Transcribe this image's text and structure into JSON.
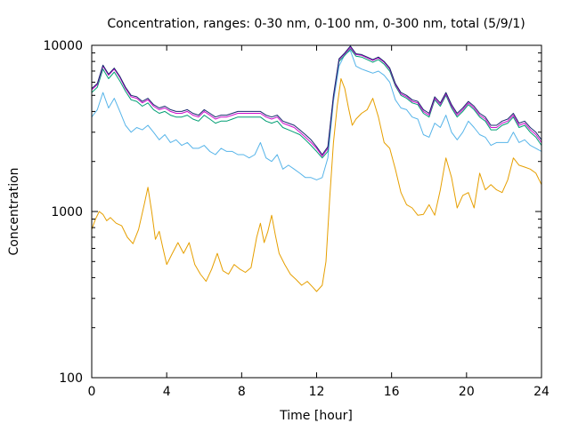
{
  "chart_data": {
    "type": "line",
    "title": "Concentration, ranges: 0-30 nm, 0-100 nm, 0-300 nm, total (5/9/1)",
    "xlabel": "Time [hour]",
    "ylabel": "Concentration",
    "xlim": [
      0,
      24
    ],
    "ylim": [
      100,
      10000
    ],
    "yscale": "log",
    "grid": false,
    "legend": "none",
    "x_ticks": [
      0,
      4,
      8,
      12,
      16,
      20,
      24
    ],
    "x_tick_labels": [
      "0",
      "4",
      "8",
      "12",
      "16",
      "20",
      "24"
    ],
    "y_ticks": [
      100,
      1000,
      10000
    ],
    "y_tick_labels": [
      "100",
      "1000",
      "10000"
    ],
    "series": [
      {
        "color": "#e69f00",
        "x": [
          0,
          0.2,
          0.4,
          0.6,
          0.8,
          1.0,
          1.3,
          1.6,
          1.9,
          2.2,
          2.5,
          2.8,
          3.0,
          3.2,
          3.4,
          3.6,
          3.8,
          4.0,
          4.3,
          4.6,
          4.9,
          5.2,
          5.5,
          5.8,
          6.1,
          6.4,
          6.7,
          7.0,
          7.3,
          7.6,
          7.9,
          8.2,
          8.5,
          8.8,
          9.0,
          9.2,
          9.4,
          9.6,
          9.8,
          10.0,
          10.3,
          10.6,
          10.9,
          11.2,
          11.5,
          11.8,
          12.0,
          12.3,
          12.5,
          12.7,
          12.9,
          13.1,
          13.3,
          13.5,
          13.7,
          13.9,
          14.1,
          14.4,
          14.7,
          15.0,
          15.3,
          15.6,
          15.9,
          16.2,
          16.5,
          16.8,
          17.1,
          17.4,
          17.7,
          18.0,
          18.3,
          18.6,
          18.9,
          19.2,
          19.5,
          19.8,
          20.1,
          20.4,
          20.7,
          21.0,
          21.3,
          21.6,
          21.9,
          22.2,
          22.5,
          22.8,
          23.1,
          23.4,
          23.7,
          24.0
        ],
        "values": [
          780,
          900,
          1000,
          960,
          880,
          920,
          850,
          820,
          700,
          640,
          780,
          1100,
          1400,
          1000,
          680,
          760,
          600,
          480,
          560,
          650,
          560,
          650,
          480,
          420,
          380,
          450,
          560,
          440,
          420,
          480,
          450,
          430,
          460,
          700,
          850,
          650,
          760,
          950,
          720,
          560,
          480,
          420,
          390,
          360,
          380,
          350,
          330,
          360,
          500,
          1200,
          2600,
          4300,
          6300,
          5500,
          4200,
          3300,
          3600,
          3900,
          4100,
          4800,
          3700,
          2600,
          2400,
          1800,
          1300,
          1100,
          1050,
          950,
          960,
          1100,
          950,
          1350,
          2100,
          1600,
          1050,
          1250,
          1300,
          1050,
          1700,
          1350,
          1450,
          1350,
          1300,
          1550,
          2100,
          1900,
          1850,
          1800,
          1700,
          1450
        ]
      },
      {
        "color": "#56b4e9",
        "x": [
          0,
          0.3,
          0.6,
          0.9,
          1.2,
          1.5,
          1.8,
          2.1,
          2.4,
          2.7,
          3.0,
          3.3,
          3.6,
          3.9,
          4.2,
          4.5,
          4.8,
          5.1,
          5.4,
          5.7,
          6.0,
          6.3,
          6.6,
          6.9,
          7.2,
          7.5,
          7.8,
          8.1,
          8.4,
          8.7,
          9.0,
          9.3,
          9.6,
          9.9,
          10.2,
          10.5,
          10.8,
          11.1,
          11.4,
          11.7,
          12.0,
          12.3,
          12.6,
          12.9,
          13.2,
          13.5,
          13.8,
          14.1,
          14.4,
          14.7,
          15.0,
          15.3,
          15.6,
          15.9,
          16.2,
          16.5,
          16.8,
          17.1,
          17.4,
          17.7,
          18.0,
          18.3,
          18.6,
          18.9,
          19.2,
          19.5,
          19.8,
          20.1,
          20.4,
          20.7,
          21.0,
          21.3,
          21.6,
          21.9,
          22.2,
          22.5,
          22.8,
          23.1,
          23.4,
          23.7,
          24.0
        ],
        "values": [
          3700,
          4100,
          5200,
          4200,
          4800,
          4000,
          3300,
          3000,
          3200,
          3100,
          3300,
          3000,
          2700,
          2900,
          2600,
          2700,
          2500,
          2600,
          2400,
          2400,
          2500,
          2300,
          2200,
          2400,
          2300,
          2300,
          2200,
          2200,
          2100,
          2200,
          2600,
          2100,
          2000,
          2200,
          1800,
          1900,
          1800,
          1700,
          1600,
          1600,
          1550,
          1600,
          2100,
          4600,
          7500,
          8800,
          9300,
          7500,
          7200,
          7000,
          6800,
          7000,
          6600,
          6000,
          4700,
          4200,
          4100,
          3700,
          3600,
          2900,
          2800,
          3400,
          3200,
          3800,
          3000,
          2700,
          3000,
          3500,
          3200,
          2900,
          2800,
          2500,
          2600,
          2600,
          2600,
          3000,
          2600,
          2700,
          2500,
          2400,
          2300
        ]
      },
      {
        "color": "#009e73",
        "x": [
          0,
          0.3,
          0.6,
          0.9,
          1.2,
          1.5,
          1.8,
          2.1,
          2.4,
          2.7,
          3.0,
          3.3,
          3.6,
          3.9,
          4.2,
          4.5,
          4.8,
          5.1,
          5.4,
          5.7,
          6.0,
          6.3,
          6.6,
          6.9,
          7.2,
          7.5,
          7.8,
          8.1,
          8.4,
          8.7,
          9.0,
          9.3,
          9.6,
          9.9,
          10.2,
          10.5,
          10.8,
          11.1,
          11.4,
          11.7,
          12.0,
          12.3,
          12.6,
          12.9,
          13.2,
          13.5,
          13.8,
          14.1,
          14.4,
          14.7,
          15.0,
          15.3,
          15.6,
          15.9,
          16.2,
          16.5,
          16.8,
          17.1,
          17.4,
          17.7,
          18.0,
          18.3,
          18.6,
          18.9,
          19.2,
          19.5,
          19.8,
          20.1,
          20.4,
          20.7,
          21.0,
          21.3,
          21.6,
          21.9,
          22.2,
          22.5,
          22.8,
          23.1,
          23.4,
          23.7,
          24.0
        ],
        "values": [
          5200,
          5600,
          7200,
          6300,
          6900,
          6100,
          5300,
          4700,
          4600,
          4300,
          4500,
          4100,
          3900,
          4000,
          3800,
          3700,
          3700,
          3800,
          3600,
          3500,
          3800,
          3600,
          3400,
          3500,
          3500,
          3600,
          3700,
          3700,
          3700,
          3700,
          3700,
          3500,
          3400,
          3500,
          3200,
          3100,
          3000,
          2900,
          2700,
          2500,
          2300,
          2100,
          2300,
          4800,
          8000,
          8700,
          9500,
          8600,
          8500,
          8200,
          7900,
          8200,
          7700,
          7000,
          5700,
          5000,
          4800,
          4500,
          4400,
          3900,
          3700,
          4700,
          4300,
          5000,
          4200,
          3700,
          4000,
          4400,
          4100,
          3700,
          3500,
          3100,
          3100,
          3300,
          3400,
          3700,
          3200,
          3300,
          3000,
          2800,
          2500
        ]
      },
      {
        "color": "#cc0ccc",
        "x": [
          0,
          0.3,
          0.6,
          0.9,
          1.2,
          1.5,
          1.8,
          2.1,
          2.4,
          2.7,
          3.0,
          3.3,
          3.6,
          3.9,
          4.2,
          4.5,
          4.8,
          5.1,
          5.4,
          5.7,
          6.0,
          6.3,
          6.6,
          6.9,
          7.2,
          7.5,
          7.8,
          8.1,
          8.4,
          8.7,
          9.0,
          9.3,
          9.6,
          9.9,
          10.2,
          10.5,
          10.8,
          11.1,
          11.4,
          11.7,
          12.0,
          12.3,
          12.6,
          12.9,
          13.2,
          13.5,
          13.8,
          14.1,
          14.4,
          14.7,
          15.0,
          15.3,
          15.6,
          15.9,
          16.2,
          16.5,
          16.8,
          17.1,
          17.4,
          17.7,
          18.0,
          18.3,
          18.6,
          18.9,
          19.2,
          19.5,
          19.8,
          20.1,
          20.4,
          20.7,
          21.0,
          21.3,
          21.6,
          21.9,
          22.2,
          22.5,
          22.8,
          23.1,
          23.4,
          23.7,
          24.0
        ],
        "values": [
          5400,
          5800,
          7500,
          6600,
          7200,
          6400,
          5500,
          4900,
          4800,
          4500,
          4700,
          4300,
          4100,
          4200,
          4000,
          3900,
          3900,
          4000,
          3800,
          3700,
          4000,
          3800,
          3600,
          3700,
          3700,
          3800,
          3900,
          3900,
          3900,
          3900,
          3900,
          3700,
          3600,
          3700,
          3400,
          3300,
          3200,
          3000,
          2800,
          2600,
          2400,
          2150,
          2400,
          4900,
          8200,
          8900,
          9700,
          8800,
          8700,
          8400,
          8100,
          8400,
          7900,
          7200,
          5800,
          5100,
          4900,
          4600,
          4500,
          4000,
          3800,
          4800,
          4400,
          5100,
          4300,
          3800,
          4100,
          4500,
          4200,
          3800,
          3600,
          3200,
          3200,
          3400,
          3500,
          3800,
          3300,
          3400,
          3100,
          2900,
          2600
        ]
      },
      {
        "color": "#1a2a70",
        "x": [
          0,
          0.3,
          0.6,
          0.9,
          1.2,
          1.5,
          1.8,
          2.1,
          2.4,
          2.7,
          3.0,
          3.3,
          3.6,
          3.9,
          4.2,
          4.5,
          4.8,
          5.1,
          5.4,
          5.7,
          6.0,
          6.3,
          6.6,
          6.9,
          7.2,
          7.5,
          7.8,
          8.1,
          8.4,
          8.7,
          9.0,
          9.3,
          9.6,
          9.9,
          10.2,
          10.5,
          10.8,
          11.1,
          11.4,
          11.7,
          12.0,
          12.3,
          12.6,
          12.9,
          13.2,
          13.5,
          13.8,
          14.1,
          14.4,
          14.7,
          15.0,
          15.3,
          15.6,
          15.9,
          16.2,
          16.5,
          16.8,
          17.1,
          17.4,
          17.7,
          18.0,
          18.3,
          18.6,
          18.9,
          19.2,
          19.5,
          19.8,
          20.1,
          20.4,
          20.7,
          21.0,
          21.3,
          21.6,
          21.9,
          22.2,
          22.5,
          22.8,
          23.1,
          23.4,
          23.7,
          24.0
        ],
        "values": [
          5500,
          5900,
          7600,
          6700,
          7300,
          6500,
          5600,
          5000,
          4900,
          4600,
          4800,
          4400,
          4200,
          4300,
          4100,
          4000,
          4000,
          4100,
          3900,
          3800,
          4100,
          3900,
          3700,
          3800,
          3800,
          3900,
          4000,
          4000,
          4000,
          4000,
          4000,
          3800,
          3700,
          3800,
          3500,
          3400,
          3300,
          3100,
          2900,
          2700,
          2450,
          2200,
          2450,
          5000,
          8300,
          9000,
          9900,
          8900,
          8800,
          8500,
          8200,
          8500,
          8000,
          7300,
          5900,
          5200,
          5000,
          4700,
          4600,
          4100,
          3900,
          4900,
          4500,
          5200,
          4400,
          3900,
          4200,
          4600,
          4300,
          3900,
          3700,
          3300,
          3300,
          3500,
          3600,
          3900,
          3400,
          3500,
          3200,
          3000,
          2700
        ]
      }
    ]
  }
}
